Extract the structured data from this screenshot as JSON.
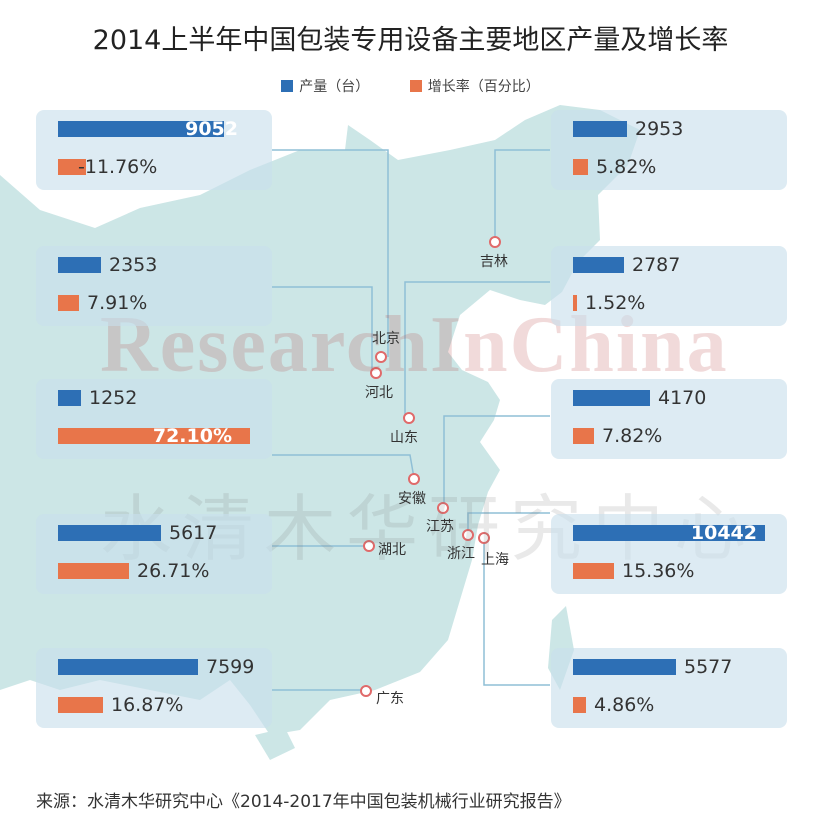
{
  "title": "2014上半年中国包装专用设备主要地区产量及增长率",
  "legend": {
    "production": "产量（台）",
    "growth": "增长率（百分比）"
  },
  "colors": {
    "production": "#2d6fb5",
    "growth": "#e8754a",
    "map": "#cce6e6",
    "card": "#c8deec",
    "line": "#8fbfd6",
    "marker": "#e06a6a"
  },
  "watermark": {
    "en": "ResearchInChina",
    "cn": "水清木华研究中心"
  },
  "regions": [
    {
      "name": "北京",
      "production": 9052,
      "production_label": "9052",
      "growth": -11.76,
      "growth_label": "-11.76%"
    },
    {
      "name": "河北",
      "production": 2353,
      "production_label": "2353",
      "growth": 7.91,
      "growth_label": "7.91%"
    },
    {
      "name": "安徽",
      "production": 1252,
      "production_label": "1252",
      "growth": 72.1,
      "growth_label": "72.10%"
    },
    {
      "name": "湖北",
      "production": 5617,
      "production_label": "5617",
      "growth": 26.71,
      "growth_label": "26.71%"
    },
    {
      "name": "广东",
      "production": 7599,
      "production_label": "7599",
      "growth": 16.87,
      "growth_label": "16.87%"
    },
    {
      "name": "吉林",
      "production": 2953,
      "production_label": "2953",
      "growth": 5.82,
      "growth_label": "5.82%"
    },
    {
      "name": "山东",
      "production": 2787,
      "production_label": "2787",
      "growth": 1.52,
      "growth_label": "1.52%"
    },
    {
      "name": "江苏",
      "production": 4170,
      "production_label": "4170",
      "growth": 7.82,
      "growth_label": "7.82%"
    },
    {
      "name": "浙江",
      "production": 10442,
      "production_label": "10442",
      "growth": 15.36,
      "growth_label": "15.36%"
    },
    {
      "name": "上海",
      "production": 5577,
      "production_label": "5577",
      "growth": 4.86,
      "growth_label": "4.86%"
    }
  ],
  "source": "来源：水清木华研究中心《2014-2017年中国包装机械行业研究报告》"
}
